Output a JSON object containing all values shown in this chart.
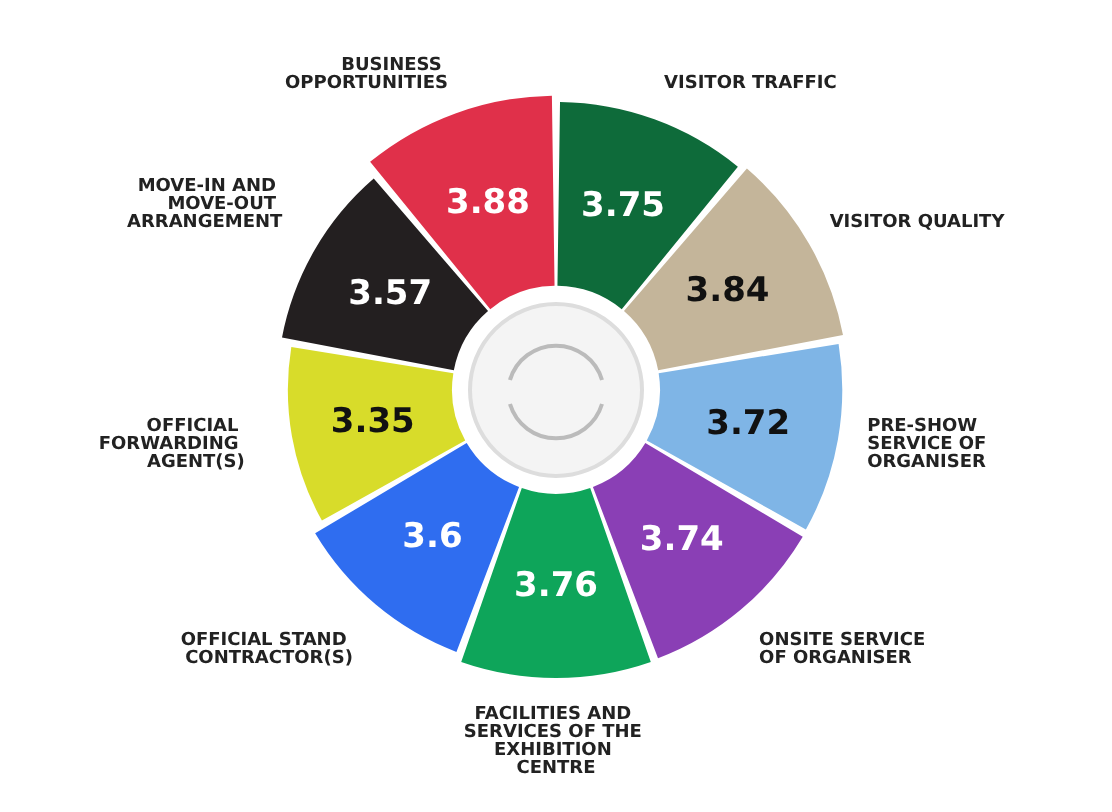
{
  "chart_data": {
    "type": "other",
    "categories": [
      "VISITOR TRAFFIC",
      "VISITOR QUALITY",
      "PRE-SHOW SERVICE OF ORGANISER",
      "ONSITE SERVICE OF ORGANISER",
      "FACILITIES AND SERVICES OF THE EXHIBITION CENTRE",
      "OFFICIAL STAND CONTRACTOR(S)",
      "OFFICIAL FORWARDING AGENT(S)",
      "MOVE-IN AND MOVE-OUT ARRANGEMENT",
      "BUSINESS OPPORTUNITIES"
    ],
    "values": [
      3.75,
      3.84,
      3.72,
      3.74,
      3.76,
      3.6,
      3.35,
      3.57,
      3.88
    ],
    "colors": [
      "#0e6b3a",
      "#c4b59a",
      "#7fb5e6",
      "#8a3fb5",
      "#0ea55a",
      "#2f6df0",
      "#d8dc2a",
      "#231f20",
      "#e0304a"
    ],
    "data_labels": true
  }
}
